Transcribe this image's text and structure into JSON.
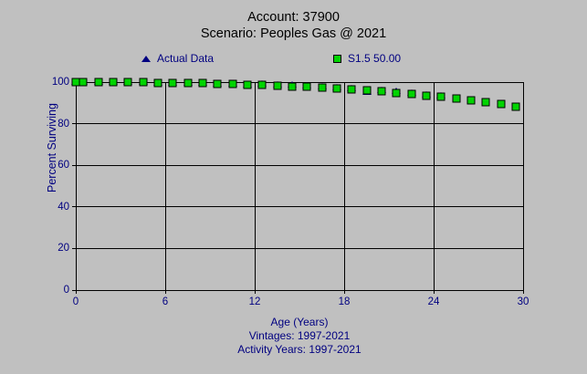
{
  "title_line1": "Account: 37900",
  "title_line2": "Scenario: Peoples Gas @ 2021",
  "legend": {
    "actual": {
      "label": "Actual Data",
      "marker": "triangle",
      "color": "#000080"
    },
    "curve": {
      "label": "S1.5 50.00",
      "marker": "square",
      "color": "#00d400"
    }
  },
  "colors": {
    "background": "#c0c0c0",
    "grid": "#000000",
    "title_text": "#000000",
    "axis_text": "#000080",
    "square_fill": "#00d400",
    "square_border": "#000000",
    "triangle_fill": "#000080"
  },
  "footer": {
    "xlabel": "Age (Years)",
    "vintages": "Vintages: 1997-2021",
    "activity_years": "Activity Years: 1997-2021"
  },
  "chart_data": {
    "type": "scatter",
    "title": "Account: 37900 / Scenario: Peoples Gas @ 2021",
    "xlabel": "Age (Years)",
    "ylabel": "Percent Surviving",
    "xlim": [
      0,
      30
    ],
    "ylim": [
      0,
      100
    ],
    "x_ticks": [
      0,
      6,
      12,
      18,
      24,
      30
    ],
    "y_ticks": [
      0,
      20,
      40,
      60,
      80,
      100
    ],
    "grid": true,
    "legend_position": "top",
    "series": [
      {
        "name": "Actual Data",
        "marker": "triangle",
        "color": "#000080",
        "x": [
          0,
          0.5,
          1.5,
          2.5,
          3.5,
          4.5,
          5.5,
          6.5,
          7.5,
          8.5,
          9.5,
          10.5,
          11.5,
          12.5,
          13.5,
          14.5,
          15.5,
          16.5,
          17.5,
          18.5,
          19.5,
          20.5,
          21.5,
          22.5,
          23.5,
          24.5
        ],
        "y": [
          100,
          100,
          99.9,
          99.9,
          99.9,
          99.8,
          99.7,
          99.7,
          99.6,
          99.4,
          99.3,
          99.1,
          98.9,
          99.1,
          98.9,
          98.5,
          98.2,
          97.9,
          97.4,
          96.9,
          95.3,
          95.9,
          95.4,
          94.8,
          94.0,
          93.4
        ]
      },
      {
        "name": "S1.5 50.00",
        "marker": "square",
        "color": "#00d400",
        "x": [
          0,
          0.5,
          1.5,
          2.5,
          3.5,
          4.5,
          5.5,
          6.5,
          7.5,
          8.5,
          9.5,
          10.5,
          11.5,
          12.5,
          13.5,
          14.5,
          15.5,
          16.5,
          17.5,
          18.5,
          19.5,
          20.5,
          21.5,
          22.5,
          23.5,
          24.5,
          25.5,
          26.5,
          27.5,
          28.5,
          29.5
        ],
        "y": [
          100,
          100,
          99.9,
          99.9,
          99.8,
          99.8,
          99.7,
          99.6,
          99.5,
          99.4,
          99.2,
          99.0,
          98.8,
          98.6,
          98.3,
          98.0,
          97.7,
          97.3,
          96.9,
          96.4,
          95.9,
          95.4,
          94.8,
          94.2,
          93.5,
          92.8,
          92.0,
          91.2,
          90.3,
          89.3,
          88.3
        ]
      }
    ]
  }
}
